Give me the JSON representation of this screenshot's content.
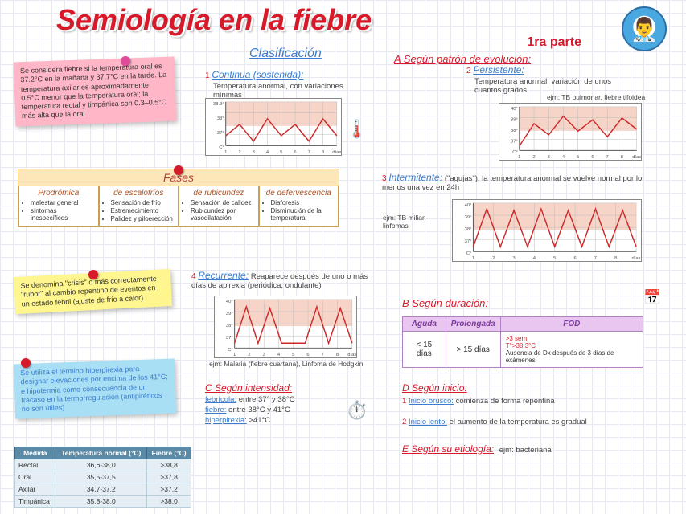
{
  "title": "Semiología en la fiebre",
  "subtitle": "1ra parte",
  "clasificacion": "Clasificación",
  "avatar_emoji": "👨‍⚕️",
  "sticky_pink": "Se considera fiebre si la temperatura oral es 37.2°C en la mañana y 37.7°C en la tarde. La temperatura axilar es aproximadamente 0.5°C menor que la temperatura oral; la temperatura rectal y timpánica son 0.3–0.5°C más alta que la oral",
  "sticky_yellow": "Se denomina \"crisis\" o más correctamente \"rubor\" al cambio repentino de eventos en un estado febril (ajuste de frío a calor)",
  "sticky_blue": "Se utiliza el término hiperpirexia para designar elevaciones por encima de los 41°C; e hipotermia como consecuencia de un fracaso en la termorregulación (antipiréticos no son útiles)",
  "fases": {
    "title": "Fases",
    "cols": [
      {
        "h": "Prodrómica",
        "items": [
          "malestar general",
          "síntomas inespecíficos"
        ]
      },
      {
        "h": "de escalofríos",
        "items": [
          "Sensación de frío",
          "Estremecimiento",
          "Palidez y piloerección"
        ]
      },
      {
        "h": "de rubicundez",
        "items": [
          "Sensación de calidez",
          "Rubicundez por vasodilatación"
        ]
      },
      {
        "h": "de defervescencia",
        "items": [
          "Diaforesis",
          "Disminución de la temperatura"
        ]
      }
    ]
  },
  "cat_a": "A  Según patrón de evolución:",
  "patterns": {
    "p1": {
      "num": "1",
      "title": "Continua (sostenida):",
      "desc": "Temperatura anormal, con variaciones mínimas"
    },
    "p2": {
      "num": "2",
      "title": "Persistente:",
      "desc": "Temperatura anormal, variación de unos cuantos grados",
      "ejm": "ejm: TB pulmonar, fiebre tifoidea"
    },
    "p3": {
      "num": "3",
      "title": "Intermitente:",
      "desc": "(\"agujas\"), la temperatura anormal se vuelve normal por lo menos una vez en 24h",
      "ejm": "ejm: TB miliar, linfomas"
    },
    "p4": {
      "num": "4",
      "title": "Recurrente:",
      "desc": "Reaparece después de uno o más días de apirexia (periódica, ondulante)",
      "ejm": "ejm: Malaria (fiebre cuartana), Linfoma de Hodgkin"
    }
  },
  "cat_b": "B  Según duración:",
  "dur": {
    "headers": [
      "Aguda",
      "Prolongada",
      "FOD"
    ],
    "cells": [
      "< 15 días",
      "> 15 días",
      ">3 sem\nT°>38.3°C\nAusencia de Dx después de 3 días de exámenes"
    ]
  },
  "cat_c": "C  Según intensidad:",
  "intensity": {
    "febricula": "febrícula: entre 37° y 38°C",
    "fiebre": "fiebre: entre 38°C y 41°C",
    "hiper": "hiperpirexia: >41°C"
  },
  "cat_d": "D  Según inicio:",
  "inicio": {
    "d1": {
      "num": "1",
      "t": "Inicio brusco:",
      "d": "comienza de forma repentina"
    },
    "d2": {
      "num": "2",
      "t": "Inicio lento:",
      "d": "el aumento de la temperatura es gradual"
    }
  },
  "cat_e": "E  Según su etiología:",
  "etio": "ejm: bacteriana",
  "temp_table": {
    "headers": [
      "Medida",
      "Temperatura normal (°C)",
      "Fiebre (°C)"
    ],
    "rows": [
      [
        "Rectal",
        "36,6-38,0",
        ">38,8"
      ],
      [
        "Oral",
        "35,5-37,5",
        ">37,8"
      ],
      [
        "Axilar",
        "34,7-37,2",
        ">37,2"
      ],
      [
        "Timpánica",
        "35,8-38,0",
        ">38,0"
      ]
    ]
  },
  "charts": {
    "bg": "#f7d4c8",
    "line": "#cc2a2a",
    "grid": "#bbb",
    "axis": "#555",
    "ylabels": [
      "38.3°",
      "38°",
      "37°",
      "C°"
    ],
    "ylabels2": [
      "40°",
      "39°",
      "38°",
      "37°",
      "C°"
    ],
    "xlabels": [
      "1",
      "2",
      "3",
      "4",
      "5",
      "6",
      "7",
      "8",
      "días"
    ],
    "c1": {
      "pts": [
        [
          0,
          12
        ],
        [
          20,
          8
        ],
        [
          40,
          14
        ],
        [
          60,
          6
        ],
        [
          80,
          12
        ],
        [
          100,
          8
        ],
        [
          120,
          14
        ],
        [
          140,
          6
        ],
        [
          160,
          12
        ]
      ]
    },
    "c2": {
      "pts": [
        [
          0,
          42
        ],
        [
          20,
          18
        ],
        [
          40,
          30
        ],
        [
          60,
          10
        ],
        [
          80,
          26
        ],
        [
          100,
          14
        ],
        [
          120,
          32
        ],
        [
          140,
          12
        ],
        [
          160,
          24
        ]
      ]
    },
    "c3": {
      "pts": [
        [
          0,
          60
        ],
        [
          18,
          8
        ],
        [
          36,
          60
        ],
        [
          54,
          10
        ],
        [
          72,
          60
        ],
        [
          90,
          8
        ],
        [
          108,
          60
        ],
        [
          126,
          10
        ],
        [
          144,
          60
        ],
        [
          162,
          8
        ],
        [
          180,
          60
        ],
        [
          198,
          10
        ],
        [
          216,
          60
        ]
      ]
    },
    "c4": {
      "pts": [
        [
          0,
          60
        ],
        [
          16,
          10
        ],
        [
          32,
          60
        ],
        [
          48,
          12
        ],
        [
          64,
          60
        ],
        [
          80,
          60
        ],
        [
          96,
          60
        ],
        [
          112,
          10
        ],
        [
          128,
          60
        ],
        [
          144,
          12
        ],
        [
          160,
          60
        ]
      ]
    }
  }
}
